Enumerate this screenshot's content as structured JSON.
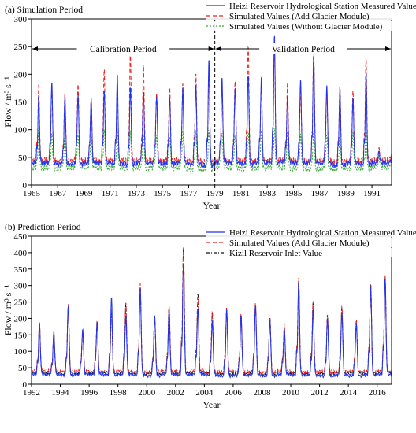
{
  "chart_data": [
    {
      "type": "line",
      "panel_label": "(a) Simulation Period",
      "xlabel": "Year",
      "ylabel": "Flow / m³ s⁻¹",
      "xlim": [
        1965,
        1992.5
      ],
      "ylim": [
        0,
        300
      ],
      "x_ticks": [
        1965,
        1967,
        1969,
        1971,
        1973,
        1975,
        1977,
        1979,
        1981,
        1983,
        1985,
        1987,
        1989,
        1991
      ],
      "y_ticks": [
        0,
        50,
        100,
        150,
        200,
        250,
        300
      ],
      "annotations": [
        {
          "text": "Calibration Period",
          "x_start": 1965,
          "x_end": 1979
        },
        {
          "text": "Validation Period",
          "x_start": 1979,
          "x_end": 1992.5
        }
      ],
      "divider_x": 1979,
      "legend_position": "top-right",
      "series": [
        {
          "name": "Heizi Reservoir Hydrological Station Measured Value",
          "color": "#2233ee",
          "style": "solid",
          "base": [
            40,
            40,
            38,
            38,
            40,
            40,
            39,
            37,
            40,
            40,
            38,
            40,
            38,
            35,
            42,
            40,
            38,
            40,
            40,
            42,
            40,
            40,
            40,
            35,
            40,
            38,
            40
          ],
          "peak": [
            160,
            185,
            160,
            165,
            155,
            168,
            197,
            175,
            170,
            163,
            158,
            175,
            178,
            225,
            195,
            178,
            200,
            195,
            268,
            158,
            190,
            235,
            183,
            172,
            155,
            200,
            60
          ]
        },
        {
          "name": "Simulated Values (Add Glacier Module)",
          "color": "#ee2222",
          "style": "dashed",
          "base": [
            45,
            45,
            43,
            45,
            45,
            44,
            45,
            44,
            45,
            45,
            44,
            45,
            44,
            42,
            45,
            44,
            44,
            45,
            45,
            45,
            44,
            44,
            45,
            42,
            44,
            44,
            45
          ],
          "peak": [
            178,
            175,
            165,
            185,
            158,
            208,
            175,
            238,
            218,
            168,
            178,
            182,
            198,
            200,
            178,
            190,
            252,
            183,
            248,
            180,
            172,
            245,
            168,
            178,
            168,
            228,
            65
          ]
        },
        {
          "name": "Simulated Values (Without Glacier Module)",
          "color": "#33aa33",
          "style": "dotted",
          "base": [
            30,
            30,
            30,
            32,
            31,
            30,
            32,
            30,
            30,
            32,
            30,
            30,
            28,
            28,
            32,
            30,
            30,
            30,
            32,
            30,
            30,
            28,
            30,
            28,
            30,
            30,
            32
          ],
          "peak": [
            95,
            90,
            85,
            92,
            88,
            98,
            92,
            95,
            90,
            92,
            88,
            95,
            95,
            95,
            92,
            90,
            98,
            95,
            100,
            92,
            90,
            98,
            92,
            90,
            92,
            95,
            50
          ]
        }
      ]
    },
    {
      "type": "line",
      "panel_label": "(b) Prediction Period",
      "xlabel": "Year",
      "ylabel": "Flow / m³ s⁻¹",
      "xlim": [
        1992,
        2017
      ],
      "ylim": [
        0,
        450
      ],
      "x_ticks": [
        1992,
        1994,
        1996,
        1998,
        2000,
        2002,
        2004,
        2006,
        2008,
        2010,
        2012,
        2014,
        2016
      ],
      "y_ticks": [
        0,
        50,
        100,
        150,
        200,
        250,
        300,
        350,
        400,
        450
      ],
      "legend_position": "top-right",
      "series": [
        {
          "name": "Heizi Reservoir Hydrological Station Measured Value",
          "color": "#2233ee",
          "style": "solid",
          "base": [
            30,
            30,
            28,
            30,
            30,
            28,
            30,
            28,
            25,
            30,
            28,
            30,
            28,
            25,
            28,
            28,
            25,
            30,
            28,
            28,
            25,
            28,
            25,
            28,
            30
          ],
          "peak": [
            182,
            158,
            240,
            170,
            190,
            262,
            205,
            292,
            210,
            225,
            370,
            230,
            190,
            225,
            210,
            240,
            200,
            165,
            310,
            225,
            200,
            220,
            185,
            300,
            320
          ]
        },
        {
          "name": "Simulated Values (Add Glacier Module)",
          "color": "#ee2222",
          "style": "dashed",
          "base": [
            40,
            40,
            38,
            40,
            40,
            38,
            40,
            38,
            38,
            40,
            38,
            40,
            38,
            38,
            38,
            38,
            38,
            40,
            38,
            38,
            38,
            38,
            38,
            38,
            40
          ],
          "peak": [
            185,
            155,
            245,
            160,
            195,
            225,
            245,
            305,
            210,
            240,
            420,
            265,
            220,
            230,
            215,
            250,
            205,
            182,
            322,
            250,
            210,
            240,
            200,
            305,
            328
          ]
        },
        {
          "name": "Kizil Reservoir Inlet Value",
          "color": "#111111",
          "style": "dashdot",
          "base": [
            35,
            35,
            33,
            35,
            35,
            33,
            35,
            33,
            33,
            35,
            33,
            35,
            33,
            33,
            33,
            33,
            33,
            35,
            33,
            33,
            33,
            33,
            33,
            33,
            35
          ],
          "peak": [
            175,
            150,
            238,
            165,
            188,
            220,
            240,
            295,
            205,
            235,
            418,
            275,
            215,
            225,
            210,
            245,
            205,
            175,
            315,
            245,
            205,
            235,
            195,
            305,
            325
          ]
        }
      ]
    }
  ]
}
